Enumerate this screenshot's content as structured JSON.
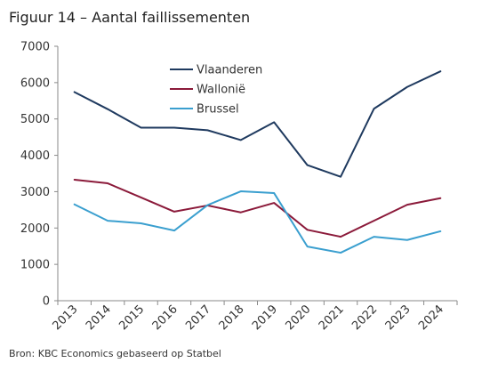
{
  "title": "Figuur 14 – Aantal faillissementen",
  "source": "Bron: KBC Economics gebaseerd op Statbel",
  "chart_data": {
    "type": "line",
    "title": "Figuur 14 – Aantal faillissementen",
    "xlabel": "",
    "ylabel": "",
    "x": [
      "2013",
      "2014",
      "2015",
      "2016",
      "2017",
      "2018",
      "2019",
      "2020",
      "2021",
      "2022",
      "2023",
      "2024"
    ],
    "ylim": [
      0,
      7000
    ],
    "yticks": [
      0,
      1000,
      2000,
      3000,
      4000,
      5000,
      6000,
      7000
    ],
    "grid": false,
    "legend": "top-center",
    "series": [
      {
        "name": "Vlaanderen",
        "color": "#1f3a5f",
        "values": [
          5740,
          5270,
          4760,
          4760,
          4690,
          4420,
          4910,
          3730,
          3410,
          5280,
          5880,
          6310
        ]
      },
      {
        "name": "Wallonië",
        "color": "#8b1a3a",
        "values": [
          3330,
          3230,
          2840,
          2450,
          2620,
          2430,
          2690,
          1950,
          1760,
          2200,
          2640,
          2820
        ]
      },
      {
        "name": "Brussel",
        "color": "#3a9fcf",
        "values": [
          2650,
          2200,
          2130,
          1930,
          2630,
          3010,
          2960,
          1490,
          1320,
          1760,
          1670,
          1910
        ]
      }
    ]
  }
}
